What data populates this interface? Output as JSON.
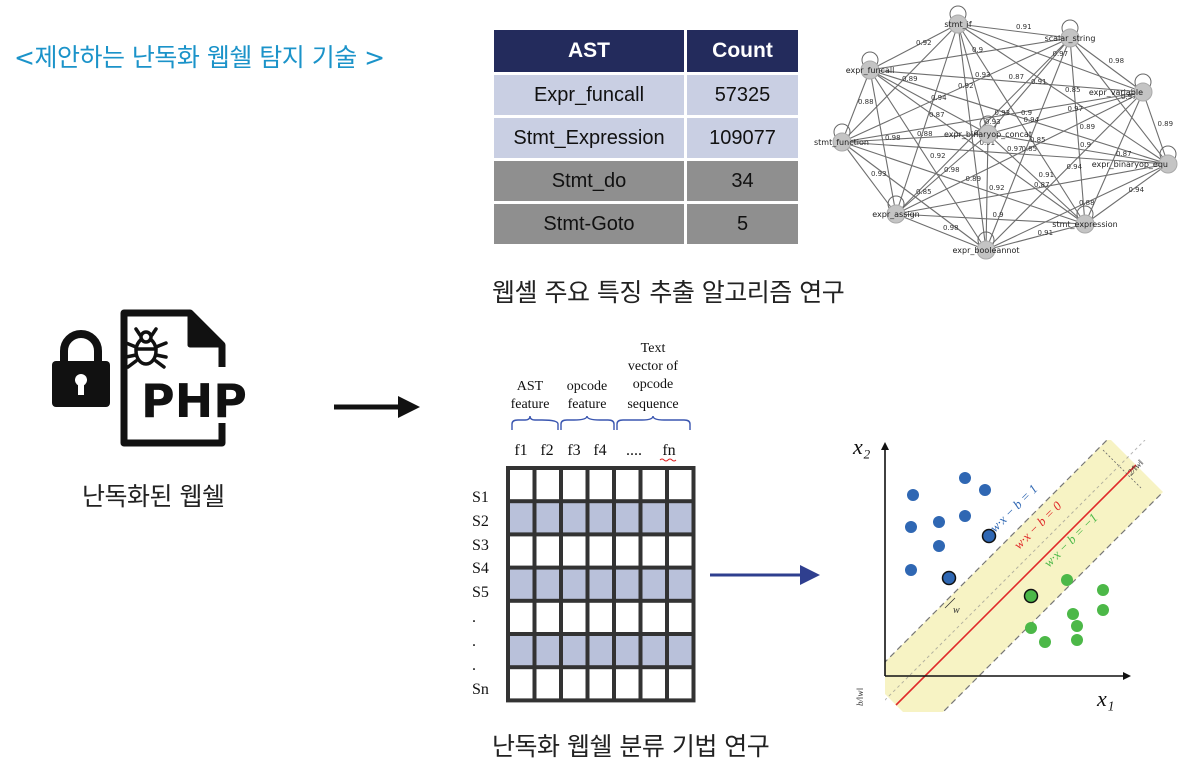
{
  "title": "<제안하는 난독화 웹쉘 탐지 기술 >",
  "left_panel": {
    "php_label": "PHP",
    "caption": "난독화된 웹쉘"
  },
  "ast_table": {
    "headers": [
      "AST",
      "Count"
    ],
    "rows": [
      {
        "ast": "Expr_funcall",
        "count": "57325"
      },
      {
        "ast": "Stmt_Expression",
        "count": "109077"
      },
      {
        "ast": "Stmt_do",
        "count": "34"
      },
      {
        "ast": "Stmt-Goto",
        "count": "5"
      }
    ]
  },
  "graph": {
    "nodes": [
      "stmt_if",
      "scalar_string",
      "expr_funcall",
      "expr_variable",
      "expr_binaryop_concat",
      "stmt_function",
      "expr_binaryop_equ",
      "expr_assign",
      "stmt_expression",
      "expr_booleannot"
    ],
    "edge_labels": [
      "0.91",
      "0.92",
      "0.97",
      "0.93",
      "0.89",
      "0.85",
      "0.87",
      "0.94",
      "0.88",
      "0.9",
      "0.98"
    ]
  },
  "caption_feature": "웹셸 주요 특징 추출 알고리즘 연구",
  "feature_matrix": {
    "group_labels": [
      {
        "lines": [
          "AST",
          "feature"
        ]
      },
      {
        "lines": [
          "opcode",
          "feature"
        ]
      },
      {
        "lines": [
          "Text",
          "vector of",
          "opcode",
          "sequence"
        ]
      }
    ],
    "column_labels": [
      "f1",
      "f2",
      "f3",
      "f4",
      "....",
      "fn"
    ],
    "row_labels": [
      "S1",
      "S2",
      "S3",
      "S4",
      "S5",
      ".",
      ".",
      ".",
      "Sn"
    ]
  },
  "svm": {
    "x_axis": "x₁",
    "y_axis": "x₂",
    "upper_margin": "w·x − b = 1",
    "hyperplane": "w·x − b = 0",
    "lower_margin": "w·x − b = −1",
    "margin_width": "2/‖w‖",
    "offset": "b/‖w‖",
    "normal": "w"
  },
  "caption_classify": "난독화 웹쉘 분류 기법 연구",
  "colors": {
    "title": "#1b93c9",
    "table_header": "#232b5c",
    "table_light": "#c9cfe3",
    "table_dark": "#8f8f8f",
    "svm_blue": "#2f67b3",
    "svm_green": "#4cb848",
    "svm_red": "#e02a2a",
    "arrow_blue": "#2f3f8f"
  }
}
